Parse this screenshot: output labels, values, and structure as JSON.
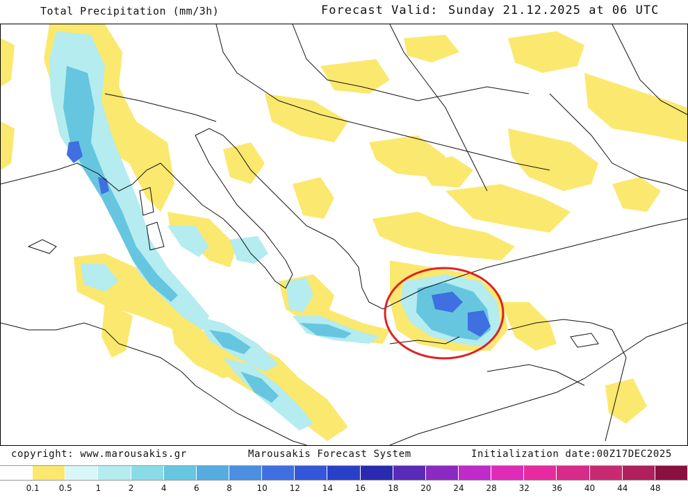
{
  "header": {
    "title": "Total Precipitation (mm/3h)",
    "valid_label": "Forecast Valid:",
    "valid_date": "Sunday 21.12.2025 at 06 UTC"
  },
  "footer": {
    "copyright": "copyright: www.marousakis.gr",
    "system": "Marousakis Forecast System",
    "init": "Initialization date:00Z17DEC2025"
  },
  "legend": {
    "colors": [
      "#ffffff",
      "#fbe86e",
      "#d9f6f8",
      "#b4ecef",
      "#8adbe6",
      "#66c6e0",
      "#55ace0",
      "#4a8fe0",
      "#3f6fe0",
      "#3456d8",
      "#2a3fc8",
      "#2a2ab0",
      "#5a2ab8",
      "#8a2ac0",
      "#c02ac8",
      "#e02ab8",
      "#e82aa0",
      "#d82a88",
      "#c82a72",
      "#b0205c",
      "#8a1040"
    ],
    "labels": [
      "0.1",
      "0.5",
      "1",
      "2",
      "4",
      "6",
      "8",
      "10",
      "12",
      "14",
      "16",
      "18",
      "20",
      "24",
      "28",
      "32",
      "36",
      "40",
      "44",
      "48"
    ]
  },
  "annotation": {
    "highlight_color": "#e02020"
  }
}
